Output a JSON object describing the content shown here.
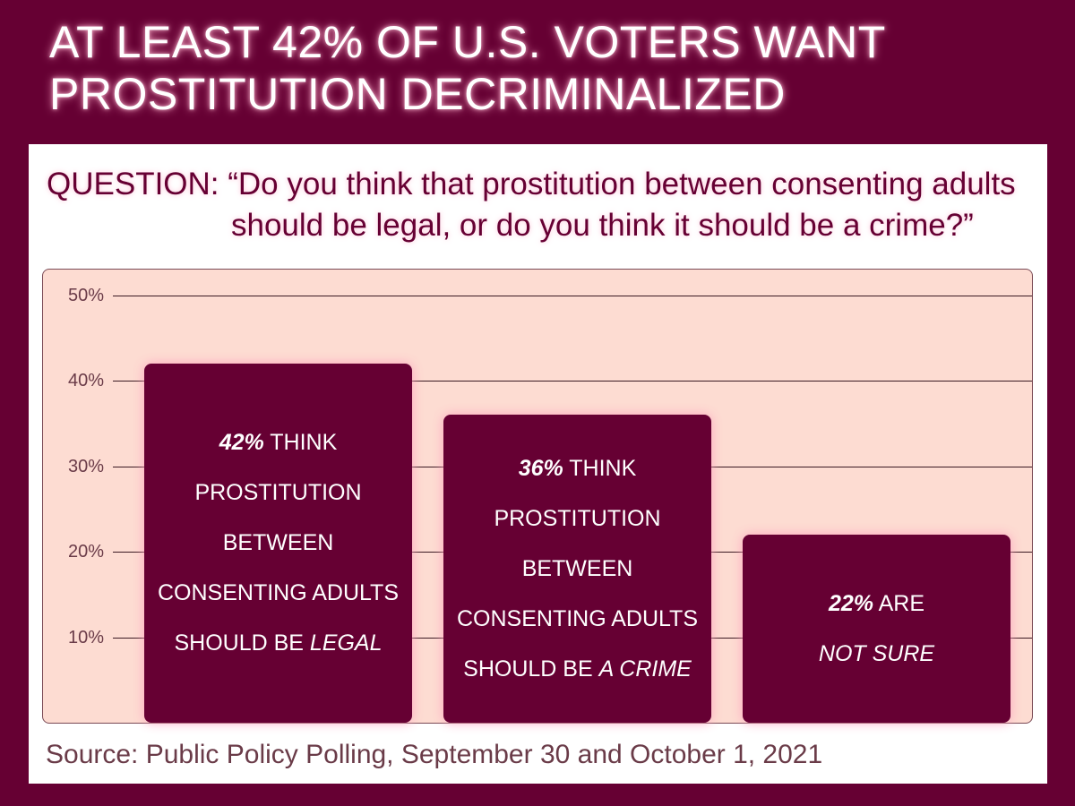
{
  "title_lines": [
    "AT LEAST 42% OF U.S. VOTERS WANT",
    "PROSTITUTION DECRIMINALIZED"
  ],
  "question_lines": [
    "QUESTION: “Do you think that prostitution between consenting adults",
    "should be legal, or do you think it should be a crime?”"
  ],
  "source": "Source: Public Policy Polling, September 30 and October 1, 2021",
  "colors": {
    "background": "#660033",
    "bar": "#660033",
    "plot_background": "#fddcd2",
    "text_light": "#ffffff"
  },
  "chart_data": {
    "type": "bar",
    "categories": [
      "Legal",
      "A crime",
      "Not sure"
    ],
    "values": [
      42,
      36,
      22
    ],
    "ylim": [
      0,
      50
    ],
    "y_ticks": [
      "10%",
      "20%",
      "30%",
      "40%",
      "50%"
    ],
    "grid": true,
    "bar_labels": [
      {
        "pct": "42%",
        "lines": [
          " THINK",
          "PROSTITUTION",
          "BETWEEN",
          "CONSENTING ADULTS",
          "SHOULD BE "
        ],
        "emphasis": "LEGAL"
      },
      {
        "pct": "36%",
        "lines": [
          " THINK",
          "PROSTITUTION",
          "BETWEEN",
          "CONSENTING ADULTS",
          "SHOULD BE "
        ],
        "emphasis": "A CRIME"
      },
      {
        "pct": "22%",
        "lines": [
          " ARE"
        ],
        "emphasis": "NOT SURE"
      }
    ]
  }
}
